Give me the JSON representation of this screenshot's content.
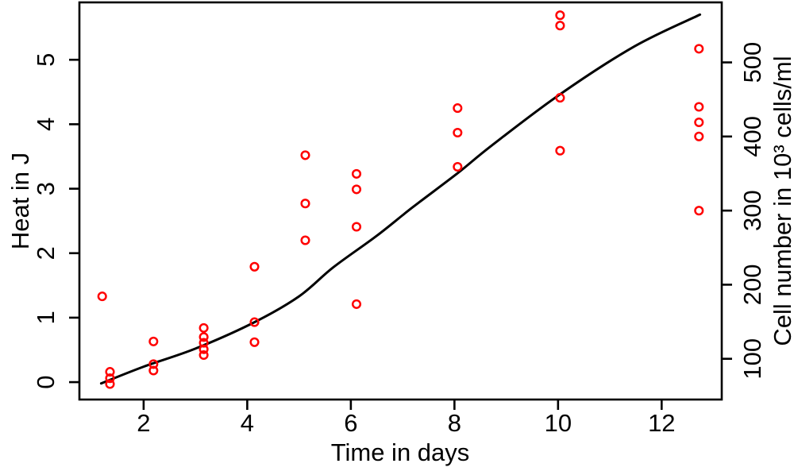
{
  "chart_data": {
    "type": "scatter",
    "title": "",
    "xlabel": "Time in days",
    "ylabel_left": "Heat in J",
    "ylabel_right": "Cell number in 10³ cells/ml",
    "xlim": [
      0.76,
      13.16
    ],
    "ylim_left": [
      -0.27,
      5.89
    ],
    "x_ticks": [
      2,
      4,
      6,
      8,
      10,
      12
    ],
    "y_ticks_left": [
      0,
      1,
      2,
      3,
      4,
      5
    ],
    "right_axis": {
      "ticks": [
        100,
        200,
        300,
        400,
        500
      ],
      "lim": [
        45,
        581
      ]
    },
    "grid": false,
    "legend": "none",
    "point_color": "#ff0000",
    "curve_color": "#000000",
    "axis_color": "#000000",
    "points": [
      [
        1.2,
        1.33
      ],
      [
        1.35,
        0.16
      ],
      [
        1.35,
        0.06
      ],
      [
        1.35,
        -0.03
      ],
      [
        2.19,
        0.63
      ],
      [
        2.19,
        0.28
      ],
      [
        2.19,
        0.18
      ],
      [
        3.16,
        0.84
      ],
      [
        3.16,
        0.7
      ],
      [
        3.16,
        0.61
      ],
      [
        3.16,
        0.51
      ],
      [
        3.16,
        0.42
      ],
      [
        4.14,
        1.79
      ],
      [
        4.14,
        0.93
      ],
      [
        4.14,
        0.62
      ],
      [
        5.12,
        3.52
      ],
      [
        5.12,
        2.77
      ],
      [
        5.12,
        2.2
      ],
      [
        6.11,
        3.23
      ],
      [
        6.11,
        2.99
      ],
      [
        6.11,
        2.41
      ],
      [
        6.11,
        1.21
      ],
      [
        8.06,
        4.25
      ],
      [
        8.06,
        3.87
      ],
      [
        8.06,
        3.34
      ],
      [
        10.04,
        5.69
      ],
      [
        10.04,
        5.53
      ],
      [
        10.04,
        4.41
      ],
      [
        10.04,
        3.59
      ],
      [
        12.72,
        5.17
      ],
      [
        12.72,
        4.27
      ],
      [
        12.72,
        4.03
      ],
      [
        12.72,
        3.81
      ],
      [
        12.72,
        2.66
      ]
    ],
    "curve": [
      [
        1.18,
        -0.02
      ],
      [
        2.0,
        0.24
      ],
      [
        3.0,
        0.52
      ],
      [
        4.14,
        0.93
      ],
      [
        5.0,
        1.33
      ],
      [
        5.66,
        1.78
      ],
      [
        6.5,
        2.27
      ],
      [
        7.19,
        2.71
      ],
      [
        8.06,
        3.24
      ],
      [
        8.72,
        3.67
      ],
      [
        10.03,
        4.46
      ],
      [
        11.48,
        5.21
      ],
      [
        12.74,
        5.7
      ]
    ]
  }
}
